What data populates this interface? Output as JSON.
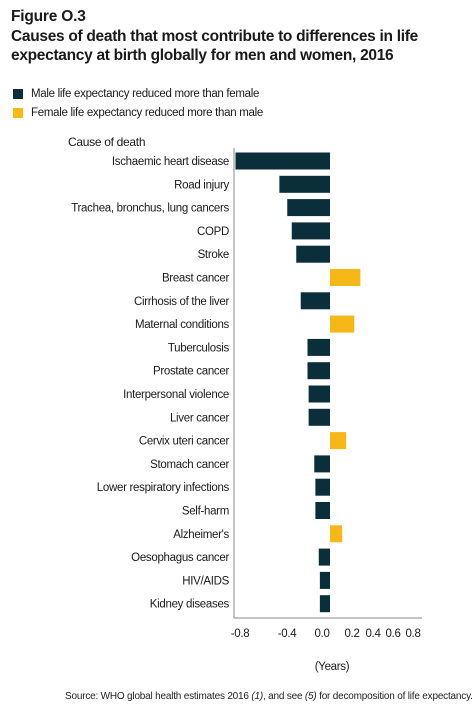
{
  "figure": {
    "label": "Figure O.3",
    "title": "Causes of death that most contribute to differences in life expectancy at birth globally for men and women, 2016"
  },
  "colors": {
    "male": "#0b2f3a",
    "female": "#f5b818",
    "axis": "#888888"
  },
  "legend": [
    {
      "label": "Male life expectancy reduced more than female",
      "color": "#0b2f3a"
    },
    {
      "label": "Female life expectancy reduced more than male",
      "color": "#f5b818"
    }
  ],
  "source": {
    "prefix": "Source: WHO global health estimates 2016 ",
    "ref1": "(1)",
    "middle": ", and see ",
    "ref2": "(5)",
    "suffix": " for decomposition of life expectancy."
  },
  "chart_data": {
    "type": "bar",
    "orientation": "horizontal",
    "ylabel": "Cause of death",
    "xlabel": "(Years)",
    "xlim": [
      -0.8,
      0.8
    ],
    "xticks": [
      -0.8,
      -0.4,
      0.0,
      0.2,
      0.4,
      0.6,
      0.8
    ],
    "xtick_labels": [
      "-0.8",
      "-0.4",
      "0.0",
      "0.2",
      "0.4",
      "0.6",
      "0.8"
    ],
    "categories": [
      "Ischaemic heart disease",
      "Road injury",
      "Trachea, bronchus, lung cancers",
      "COPD",
      "Stroke",
      "Breast cancer",
      "Cirrhosis of the liver",
      "Maternal conditions",
      "Tuberculosis",
      "Prostate cancer",
      "Interpersonal violence",
      "Liver cancer",
      "Cervix uteri cancer",
      "Stomach cancer",
      "Lower respiratory infections",
      "Self-harm",
      "Alzheimer's",
      "Oesophagus cancer",
      "HIV/AIDS",
      "Kidney diseases"
    ],
    "values": [
      -0.84,
      -0.45,
      -0.38,
      -0.34,
      -0.3,
      0.3,
      -0.26,
      0.24,
      -0.2,
      -0.2,
      -0.19,
      -0.19,
      0.16,
      -0.14,
      -0.13,
      -0.13,
      0.12,
      -0.1,
      -0.09,
      -0.09
    ],
    "series_colors_rule": "negative = male, positive = female"
  }
}
